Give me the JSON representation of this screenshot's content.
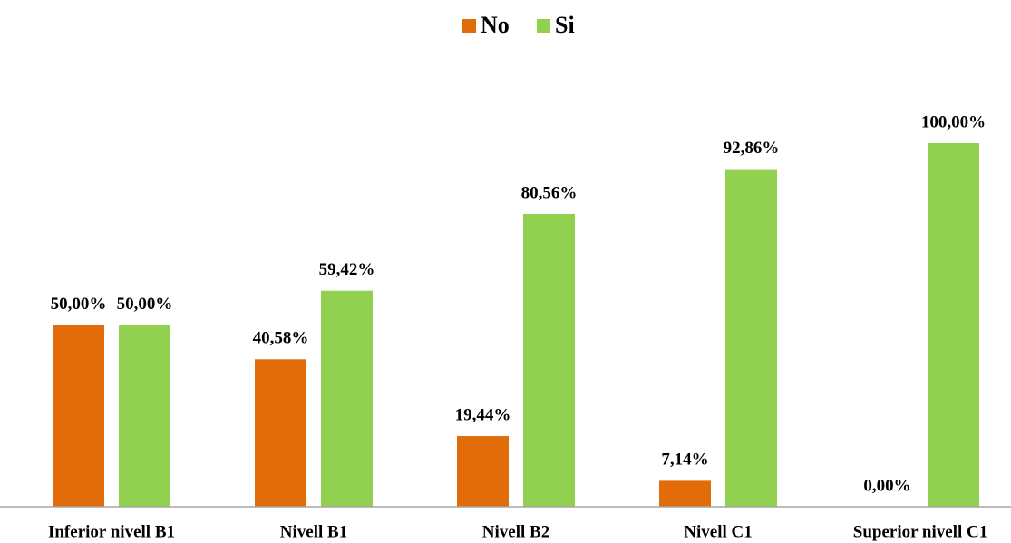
{
  "chart_data": {
    "type": "bar",
    "categories": [
      "Inferior nivell B1",
      "Nivell B1",
      "Nivell B2",
      "Nivell C1",
      "Superior nivell C1"
    ],
    "series": [
      {
        "name": "No",
        "color": "#e36c0a",
        "values": [
          50,
          40.58,
          19.44,
          7.14,
          0
        ],
        "value_labels": [
          "50,00%",
          "40,58%",
          "19,44%",
          "7,14%",
          "0,00%"
        ]
      },
      {
        "name": "Si",
        "color": "#92d050",
        "values": [
          50,
          59.42,
          80.56,
          92.86,
          100
        ],
        "value_labels": [
          "50,00%",
          "59,42%",
          "80,56%",
          "92,86%",
          "100,00%"
        ]
      }
    ],
    "legend": "top"
  }
}
